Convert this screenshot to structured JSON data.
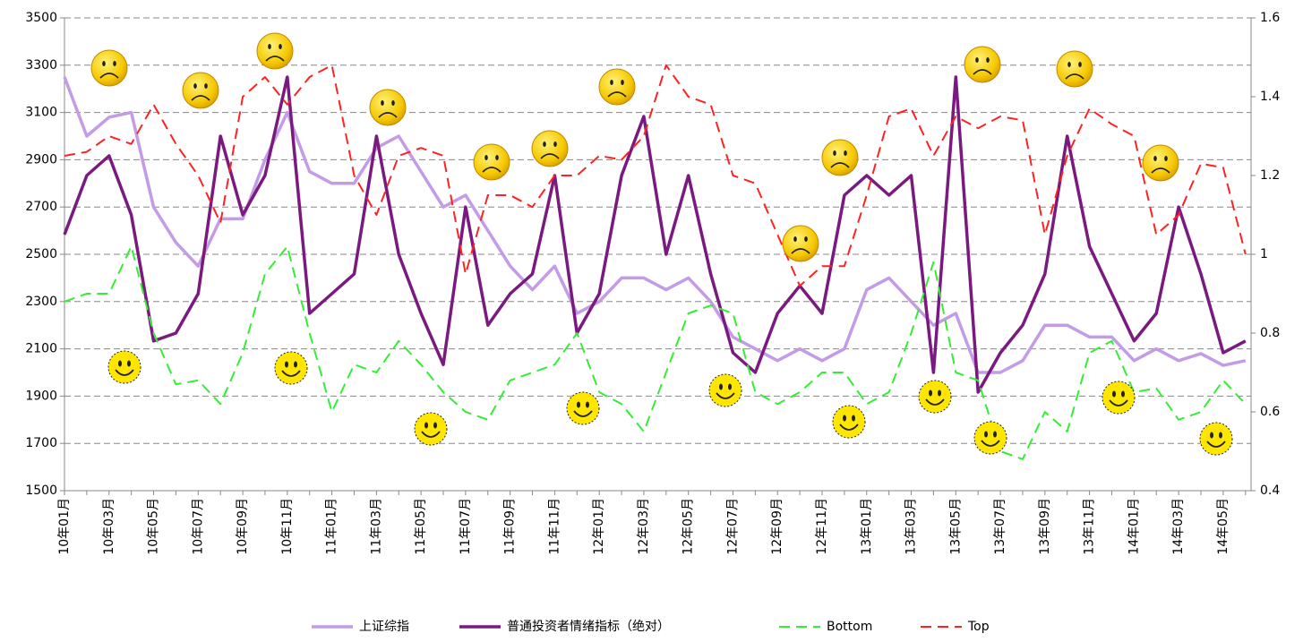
{
  "chart_data": {
    "type": "line",
    "categories": [
      "10年01月",
      null,
      "10年03月",
      null,
      "10年05月",
      null,
      "10年07月",
      null,
      "10年09月",
      null,
      "10年11月",
      null,
      "11年01月",
      null,
      "11年03月",
      null,
      "11年05月",
      null,
      "11年07月",
      null,
      "11年09月",
      null,
      "11年11月",
      null,
      "12年01月",
      null,
      "12年03月",
      null,
      "12年05月",
      null,
      "12年07月",
      null,
      "12年09月",
      null,
      "12年11月",
      null,
      "13年01月",
      null,
      "13年03月",
      null,
      "13年05月",
      null,
      "13年07月",
      null,
      "13年09月",
      null,
      "13年11月",
      null,
      "14年01月",
      null,
      "14年03月",
      null,
      "14年05月",
      null
    ],
    "series": [
      {
        "name": "上证综指",
        "color": "#c39be6",
        "line_style": "solid",
        "axis": "y",
        "values": [
          3250,
          3000,
          3080,
          3100,
          2700,
          2550,
          2450,
          2650,
          2650,
          2900,
          3100,
          2850,
          2800,
          2800,
          2950,
          3000,
          2850,
          2700,
          2750,
          2600,
          2450,
          2350,
          2450,
          2250,
          2300,
          2400,
          2400,
          2350,
          2400,
          2300,
          2150,
          2100,
          2050,
          2100,
          2050,
          2100,
          2350,
          2400,
          2300,
          2200,
          2250,
          2000,
          2000,
          2050,
          2200,
          2200,
          2150,
          2150,
          2050,
          2100,
          2050,
          2080,
          2030,
          2050
        ]
      },
      {
        "name": "普通投资者情绪指标（绝对）",
        "color": "#7a1a80",
        "line_style": "solid",
        "axis": "y2",
        "values": [
          1.05,
          1.2,
          1.25,
          1.1,
          0.78,
          0.8,
          0.9,
          1.3,
          1.1,
          1.2,
          1.45,
          0.85,
          0.9,
          0.95,
          1.3,
          1.0,
          0.85,
          0.72,
          1.12,
          0.82,
          0.9,
          0.95,
          1.2,
          0.8,
          0.9,
          1.2,
          1.35,
          1.0,
          1.2,
          0.95,
          0.75,
          0.7,
          0.85,
          0.92,
          0.85,
          1.15,
          1.2,
          1.15,
          1.2,
          0.7,
          1.45,
          0.65,
          0.75,
          0.82,
          0.95,
          1.3,
          1.02,
          0.9,
          0.78,
          0.85,
          1.12,
          0.95,
          0.75,
          0.78
        ]
      },
      {
        "name": "Bottom",
        "color": "#33ee33",
        "line_style": "dashed",
        "axis": "y2",
        "values": [
          0.88,
          0.9,
          0.9,
          1.02,
          0.8,
          0.67,
          0.68,
          0.62,
          0.75,
          0.95,
          1.02,
          0.8,
          0.6,
          0.72,
          0.7,
          0.78,
          0.72,
          0.65,
          0.6,
          0.58,
          0.68,
          0.7,
          0.72,
          0.8,
          0.65,
          0.62,
          0.55,
          0.7,
          0.85,
          0.87,
          0.85,
          0.65,
          0.62,
          0.65,
          0.7,
          0.7,
          0.62,
          0.65,
          0.8,
          0.98,
          0.7,
          0.68,
          0.5,
          0.48,
          0.6,
          0.55,
          0.75,
          0.78,
          0.65,
          0.66,
          0.58,
          0.6,
          0.68,
          0.62
        ]
      },
      {
        "name": "Top",
        "color": "#ff2222",
        "line_style": "dashed",
        "axis": "y2",
        "values": [
          1.25,
          1.26,
          1.3,
          1.28,
          1.38,
          1.28,
          1.2,
          1.08,
          1.4,
          1.45,
          1.38,
          1.45,
          1.48,
          1.2,
          1.1,
          1.25,
          1.27,
          1.25,
          0.95,
          1.15,
          1.15,
          1.12,
          1.2,
          1.2,
          1.25,
          1.24,
          1.3,
          1.48,
          1.4,
          1.38,
          1.2,
          1.18,
          1.05,
          0.92,
          0.97,
          0.97,
          1.15,
          1.35,
          1.37,
          1.25,
          1.35,
          1.32,
          1.35,
          1.34,
          1.05,
          1.25,
          1.37,
          1.33,
          1.3,
          1.05,
          1.1,
          1.23,
          1.22,
          1.0
        ]
      }
    ],
    "ylim": [
      1500,
      3500
    ],
    "yticks": [
      1500,
      1700,
      1900,
      2100,
      2300,
      2500,
      2700,
      2900,
      3100,
      3300,
      3500
    ],
    "y2lim": [
      0.4,
      1.6
    ],
    "y2ticks": [
      0.4,
      0.6,
      0.8,
      1,
      1.2,
      1.4,
      1.6
    ],
    "grid": true,
    "legend": "bottom"
  }
}
